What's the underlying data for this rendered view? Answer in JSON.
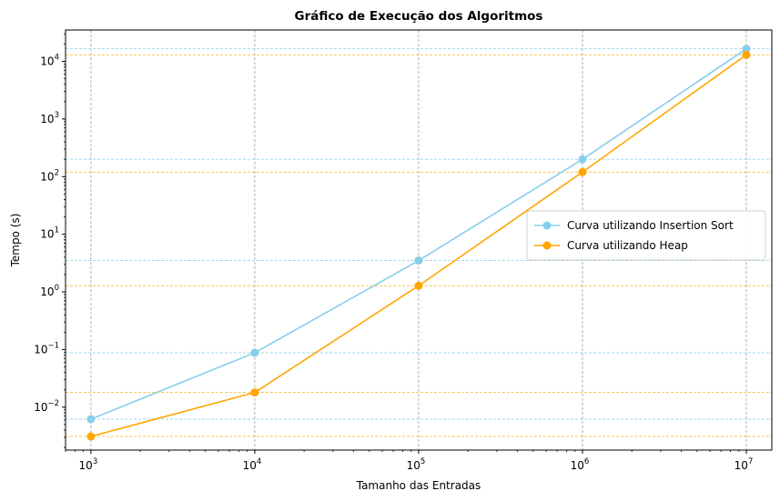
{
  "chart_data": {
    "type": "line",
    "title": "Gráfico de Execução dos Algoritmos",
    "xlabel": "Tamanho das Entradas",
    "ylabel": "Tempo (s)",
    "xscale": "log",
    "yscale": "log",
    "xlim": [
      700,
      14300000
    ],
    "ylim": [
      0.0018,
      35000
    ],
    "x_ticks": [
      {
        "base": "10",
        "exp": "3",
        "value": 1000
      },
      {
        "base": "10",
        "exp": "4",
        "value": 10000
      },
      {
        "base": "10",
        "exp": "5",
        "value": 100000
      },
      {
        "base": "10",
        "exp": "6",
        "value": 1000000
      },
      {
        "base": "10",
        "exp": "7",
        "value": 10000000
      }
    ],
    "y_ticks": [
      {
        "base": "10",
        "exp": "−2",
        "value": 0.01
      },
      {
        "base": "10",
        "exp": "−1",
        "value": 0.1
      },
      {
        "base": "10",
        "exp": "0",
        "value": 1
      },
      {
        "base": "10",
        "exp": "1",
        "value": 10
      },
      {
        "base": "10",
        "exp": "2",
        "value": 100
      },
      {
        "base": "10",
        "exp": "3",
        "value": 1000
      },
      {
        "base": "10",
        "exp": "4",
        "value": 10000
      }
    ],
    "grid": "x major ticks dashed gray; horizontal dashed lines at each data value in series color",
    "legend_position": "center-right",
    "series": [
      {
        "name": "Curva utilizando Insertion Sort",
        "color": "#87ceeb",
        "x": [
          1000,
          10000,
          100000,
          1000000,
          10000000
        ],
        "y": [
          0.0062,
          0.088,
          3.5,
          200,
          16500
        ]
      },
      {
        "name": "Curva utilizando Heap",
        "color": "#ffa500",
        "x": [
          1000,
          10000,
          100000,
          1000000,
          10000000
        ],
        "y": [
          0.0031,
          0.018,
          1.28,
          120,
          13000
        ]
      }
    ]
  }
}
